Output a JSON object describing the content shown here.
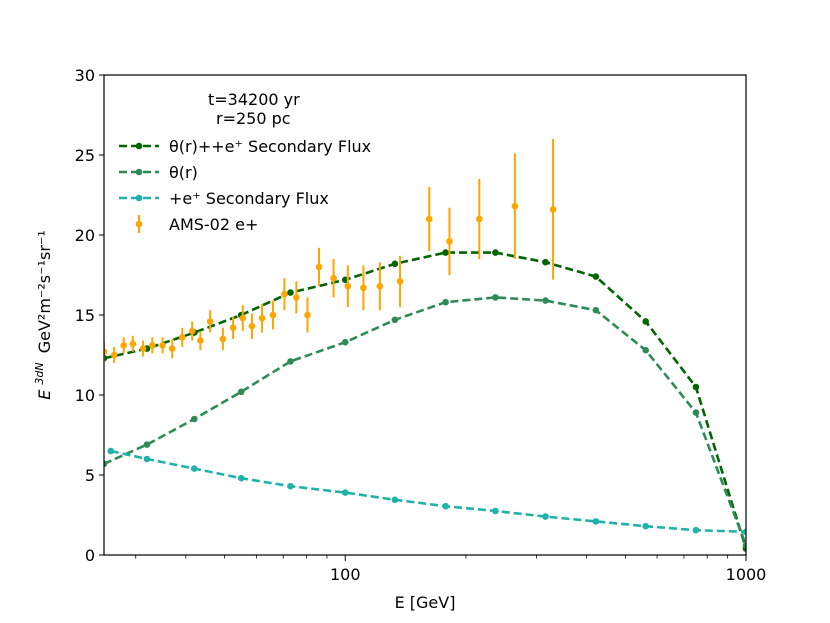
{
  "chart_data": {
    "type": "line",
    "xlabel": "E [GeV]",
    "ylabel": "E³dN/dE GeV²m⁻²s⁻¹sr⁻¹",
    "x_scale": "log",
    "xlim": [
      25,
      1000
    ],
    "ylim": [
      0,
      30
    ],
    "x_ticks": [
      100,
      1000
    ],
    "x_tick_labels": [
      "100",
      "1000"
    ],
    "y_ticks": [
      0,
      5,
      10,
      15,
      20,
      25,
      30
    ],
    "y_tick_labels": [
      "0",
      "5",
      "10",
      "15",
      "20",
      "25",
      "30"
    ],
    "annotations": [
      "t=34200 yr",
      "r=250 pc"
    ],
    "legend_position": "upper-left",
    "grid": false,
    "series": [
      {
        "name": "θ(r)++e⁺ Secondary Flux",
        "color": "#006400",
        "style": "dashed-with-markers",
        "x": [
          25,
          32,
          42,
          55,
          73,
          100,
          133,
          178,
          237,
          316,
          422,
          562,
          750,
          1000
        ],
        "y": [
          12.3,
          12.9,
          13.9,
          15.0,
          16.4,
          17.2,
          18.2,
          18.9,
          18.9,
          18.3,
          17.4,
          14.6,
          10.5,
          0.4
        ]
      },
      {
        "name": "θ(r)",
        "color": "#2e8b57",
        "style": "dashed-with-markers",
        "x": [
          25,
          32,
          42,
          55,
          73,
          100,
          133,
          178,
          237,
          316,
          422,
          562,
          750,
          1000
        ],
        "y": [
          5.7,
          6.9,
          8.5,
          10.2,
          12.1,
          13.3,
          14.7,
          15.8,
          16.1,
          15.9,
          15.3,
          12.8,
          8.9,
          0.6
        ]
      },
      {
        "name": "+e⁺ Secondary Flux",
        "color": "#20b2aa",
        "style": "dashed-with-markers",
        "x": [
          26,
          32,
          42,
          55,
          73,
          100,
          133,
          178,
          237,
          316,
          422,
          562,
          750,
          1000
        ],
        "y": [
          6.5,
          6.0,
          5.4,
          4.8,
          4.3,
          3.9,
          3.45,
          3.05,
          2.75,
          2.4,
          2.1,
          1.8,
          1.55,
          1.45
        ]
      },
      {
        "name": "AMS-02 e+",
        "color": "#ffa500",
        "style": "errorbar",
        "points": [
          {
            "x": 25.0,
            "y": 12.7,
            "err": 0.6
          },
          {
            "x": 26.5,
            "y": 12.5,
            "err": 0.5
          },
          {
            "x": 28.0,
            "y": 13.1,
            "err": 0.5
          },
          {
            "x": 29.5,
            "y": 13.2,
            "err": 0.5
          },
          {
            "x": 31.3,
            "y": 12.9,
            "err": 0.5
          },
          {
            "x": 33.0,
            "y": 13.1,
            "err": 0.5
          },
          {
            "x": 35.0,
            "y": 13.1,
            "err": 0.5
          },
          {
            "x": 37.0,
            "y": 12.9,
            "err": 0.6
          },
          {
            "x": 39.2,
            "y": 13.6,
            "err": 0.6
          },
          {
            "x": 41.5,
            "y": 14.0,
            "err": 0.6
          },
          {
            "x": 43.5,
            "y": 13.4,
            "err": 0.6
          },
          {
            "x": 46.0,
            "y": 14.6,
            "err": 0.7
          },
          {
            "x": 49.5,
            "y": 13.5,
            "err": 0.7
          },
          {
            "x": 52.5,
            "y": 14.2,
            "err": 0.7
          },
          {
            "x": 55.5,
            "y": 14.8,
            "err": 0.8
          },
          {
            "x": 58.5,
            "y": 14.3,
            "err": 0.8
          },
          {
            "x": 62.0,
            "y": 14.8,
            "err": 0.9
          },
          {
            "x": 66.0,
            "y": 15.0,
            "err": 0.9
          },
          {
            "x": 70.5,
            "y": 16.3,
            "err": 1.0
          },
          {
            "x": 75.5,
            "y": 16.1,
            "err": 1.0
          },
          {
            "x": 80.5,
            "y": 15.0,
            "err": 1.1
          },
          {
            "x": 86.0,
            "y": 18.0,
            "err": 1.2
          },
          {
            "x": 93.5,
            "y": 17.3,
            "err": 1.2
          },
          {
            "x": 101.5,
            "y": 16.8,
            "err": 1.3
          },
          {
            "x": 111.0,
            "y": 16.7,
            "err": 1.4
          },
          {
            "x": 122.0,
            "y": 16.8,
            "err": 1.5
          },
          {
            "x": 137.0,
            "y": 17.1,
            "err": 1.6
          },
          {
            "x": 162.0,
            "y": 21.0,
            "err": 2.0
          },
          {
            "x": 182.0,
            "y": 19.6,
            "err": 2.1
          },
          {
            "x": 216.0,
            "y": 21.0,
            "err": 2.5
          },
          {
            "x": 265.0,
            "y": 21.8,
            "err": 3.3
          },
          {
            "x": 330.0,
            "y": 21.6,
            "err": 4.4
          }
        ]
      }
    ]
  }
}
